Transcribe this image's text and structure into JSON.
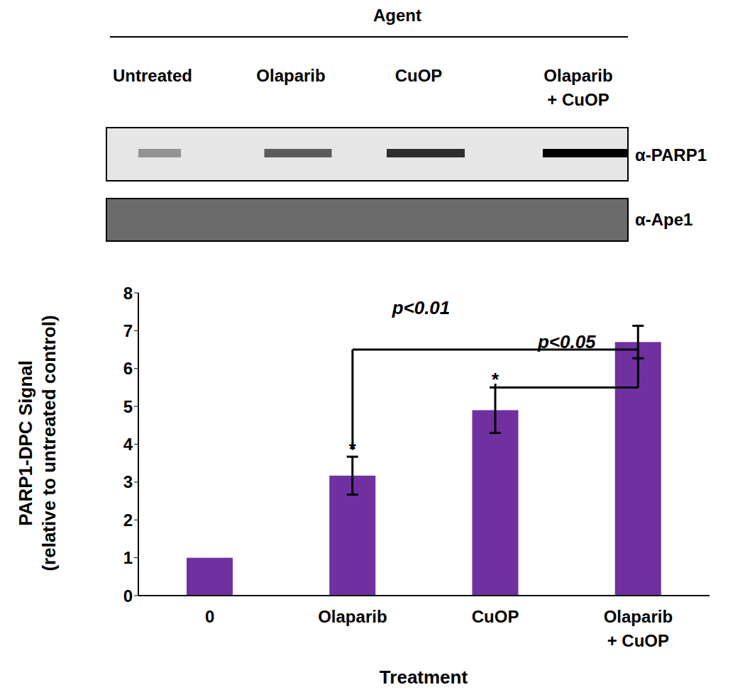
{
  "chart_data": {
    "type": "bar",
    "categories": [
      "0",
      "Olaparib",
      "CuOP",
      "Olaparib + CuOP"
    ],
    "values": [
      1,
      3.17,
      4.9,
      6.7
    ],
    "errors": [
      0,
      0.5,
      0.6,
      0.43
    ],
    "color": "#7030a0",
    "ylim": [
      0,
      8
    ],
    "yticks": [
      0,
      1,
      2,
      3,
      4,
      5,
      6,
      7,
      8
    ],
    "y_label": "PARP1-DPC Signal (relative to untreated control)",
    "x_label": "Treatment",
    "asterisk": {
      "label": "*",
      "categories": [
        "Olaparib",
        "CuOP"
      ]
    },
    "brackets": [
      {
        "from": "Olaparib",
        "to": "Olaparib + CuOP",
        "y": 6.5,
        "from_y": 3.85,
        "to_y": 6.0,
        "label": "p<0.01"
      },
      {
        "from": "CuOP",
        "to": "Olaparib + CuOP",
        "y": 5.5,
        "from_y": 5.6,
        "to_y": 6.0,
        "label": "p<0.05"
      }
    ]
  },
  "blot": {
    "header": "Agent",
    "lanes": [
      "Untreated",
      "Olaparib",
      "CuOP",
      "Olaparib + CuOP"
    ],
    "rows": [
      "α-PARP1",
      "α-Ape1"
    ]
  }
}
